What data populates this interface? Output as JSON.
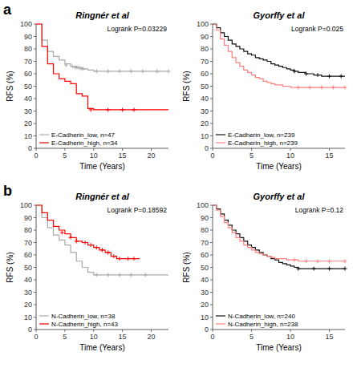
{
  "chart_data": [
    {
      "type": "step",
      "title": "Ringnér et al",
      "panel_label": "a",
      "annotations": [
        "Logrank P=0.03229"
      ],
      "xlabel": "Time (Years)",
      "ylabel": "RFS (%)",
      "xlim": [
        0,
        23
      ],
      "ylim": [
        0,
        100
      ],
      "xticks": [
        0,
        5,
        10,
        15,
        20
      ],
      "yticks": [
        0,
        10,
        20,
        30,
        40,
        50,
        60,
        70,
        80,
        90,
        100
      ],
      "grid": false,
      "legend": "lower left",
      "series": [
        {
          "name": "E-Cadherin_low, n=47",
          "color": "#aaaaaa",
          "x": [
            0,
            1,
            2,
            3,
            4,
            5,
            6,
            7,
            8,
            9,
            10,
            11,
            12,
            13,
            14,
            15,
            16,
            17,
            18,
            19,
            20,
            21,
            22,
            23
          ],
          "values": [
            100,
            87,
            78,
            74,
            71,
            68,
            66,
            65,
            64,
            63,
            62,
            62,
            62,
            62,
            62,
            62,
            62,
            62,
            62,
            62,
            62,
            62,
            62,
            62
          ],
          "censor_x": [
            5.2,
            6.3,
            6.8,
            7.1,
            7.4,
            7.8,
            8.2,
            10.5,
            12.5,
            14.5,
            16.5,
            18.5,
            21.0,
            23.0
          ],
          "censor_values": [
            67,
            66,
            65,
            65,
            65,
            64,
            64,
            62,
            62,
            62,
            62,
            62,
            62,
            62
          ]
        },
        {
          "name": "E-Cadherin_high, n=34",
          "color": "#ff0000",
          "x": [
            0,
            1,
            2,
            3,
            4,
            5,
            6,
            7,
            8,
            9,
            10,
            11,
            12,
            13,
            14,
            15,
            16,
            17,
            18,
            19,
            20,
            21,
            22,
            23
          ],
          "values": [
            100,
            82,
            68,
            60,
            56,
            54,
            52,
            44,
            42,
            32,
            31,
            31,
            31,
            31,
            31,
            31,
            31,
            31,
            31,
            31,
            31,
            31,
            31,
            31
          ],
          "censor_x": [
            9.5,
            12.5,
            15.0,
            17.0
          ],
          "censor_values": [
            31,
            31,
            31,
            31
          ]
        }
      ]
    },
    {
      "type": "step",
      "title": "Gyorffy et al",
      "annotations": [
        "Logrank P=0.025"
      ],
      "xlabel": "Time (Years)",
      "ylabel": "RFS (%)",
      "xlim": [
        0,
        17
      ],
      "ylim": [
        0,
        100
      ],
      "xticks": [
        0,
        5,
        10,
        15
      ],
      "yticks": [
        0,
        10,
        20,
        30,
        40,
        50,
        60,
        70,
        80,
        90,
        100
      ],
      "grid": false,
      "legend": "lower left",
      "series": [
        {
          "name": "E-Cadherin_low, n=239",
          "color": "#111111",
          "x": [
            0,
            0.5,
            1.0,
            1.5,
            2.0,
            2.5,
            3.0,
            3.5,
            4.0,
            4.5,
            5.0,
            5.5,
            6.0,
            6.5,
            7.0,
            7.5,
            8.0,
            8.5,
            9.0,
            9.5,
            10.0,
            10.5,
            11.0,
            12.0,
            13.0,
            14.0,
            15.0,
            16.0,
            17.0
          ],
          "values": [
            100,
            97,
            93,
            90,
            87,
            84,
            82,
            80,
            78,
            76,
            75,
            73,
            72,
            71,
            70,
            68,
            67,
            66,
            65,
            64,
            63,
            62,
            61,
            60,
            59,
            58,
            58,
            58,
            58
          ],
          "censor_x": [
            10.5,
            12.0,
            13.5,
            15.0,
            16.5
          ],
          "censor_values": [
            62,
            60,
            59,
            58,
            58
          ]
        },
        {
          "name": "E-Cadherin_high, n=239",
          "color": "#ff8080",
          "x": [
            0,
            0.5,
            1.0,
            1.5,
            2.0,
            2.5,
            3.0,
            3.5,
            4.0,
            4.5,
            5.0,
            5.5,
            6.0,
            6.5,
            7.0,
            7.5,
            8.0,
            8.5,
            9.0,
            9.5,
            10.0,
            10.5,
            11.0,
            12.0,
            13.0,
            14.0,
            15.0,
            16.0,
            17.0
          ],
          "values": [
            100,
            95,
            88,
            83,
            78,
            73,
            69,
            66,
            63,
            61,
            59,
            57,
            56,
            54,
            53,
            52,
            51,
            51,
            50,
            50,
            49,
            49,
            49,
            49,
            49,
            49,
            49,
            49,
            49
          ],
          "censor_x": [
            11.0,
            12.5,
            14.0,
            15.5,
            17.0
          ],
          "censor_values": [
            49,
            49,
            49,
            49,
            49
          ]
        }
      ]
    },
    {
      "type": "step",
      "title": "Ringnér et al",
      "panel_label": "b",
      "annotations": [
        "Logrank P=0.18592"
      ],
      "xlabel": "Time (Years)",
      "ylabel": "RFS (%)",
      "xlim": [
        0,
        23
      ],
      "ylim": [
        0,
        100
      ],
      "xticks": [
        0,
        5,
        10,
        15,
        20
      ],
      "yticks": [
        0,
        10,
        20,
        30,
        40,
        50,
        60,
        70,
        80,
        90,
        100
      ],
      "grid": false,
      "legend": "lower left",
      "series": [
        {
          "name": "N-Cadherin_low, n=38",
          "color": "#aaaaaa",
          "x": [
            0,
            1,
            2,
            3,
            4,
            5,
            6,
            7,
            8,
            9,
            10,
            11,
            12,
            13,
            14,
            15,
            16,
            17,
            18,
            19,
            20,
            21,
            22,
            23
          ],
          "values": [
            100,
            90,
            82,
            76,
            72,
            68,
            62,
            55,
            50,
            46,
            44,
            44,
            44,
            44,
            44,
            44,
            44,
            44,
            44,
            44,
            44,
            44,
            44,
            44
          ],
          "censor_x": [
            10.5,
            12.5,
            14.5,
            16.5,
            19.0
          ],
          "censor_values": [
            44,
            44,
            44,
            44,
            44
          ]
        },
        {
          "name": "N-Cadherin_high, n=43",
          "color": "#ff0000",
          "x": [
            0,
            1,
            2,
            3,
            4,
            5,
            6,
            7,
            8,
            9,
            10,
            11,
            12,
            13,
            14,
            15,
            16,
            17,
            18
          ],
          "values": [
            100,
            94,
            88,
            83,
            80,
            77,
            74,
            71,
            70,
            68,
            66,
            64,
            62,
            59,
            57,
            57,
            57,
            57,
            57
          ],
          "censor_x": [
            4.5,
            6.0,
            7.0,
            8.5,
            9.5,
            10.5,
            11.5,
            12.5,
            13.5,
            14.5,
            16.0,
            17.0
          ],
          "censor_values": [
            78,
            74,
            71,
            70,
            68,
            66,
            64,
            62,
            59,
            57,
            57,
            57
          ]
        }
      ]
    },
    {
      "type": "step",
      "title": "Gyorffy et al",
      "annotations": [
        "Logrank P=0.12"
      ],
      "xlabel": "Time (Years)",
      "ylabel": "RFS (%)",
      "xlim": [
        0,
        17
      ],
      "ylim": [
        0,
        100
      ],
      "xticks": [
        0,
        5,
        10,
        15
      ],
      "yticks": [
        0,
        10,
        20,
        30,
        40,
        50,
        60,
        70,
        80,
        90,
        100
      ],
      "grid": false,
      "legend": "lower left",
      "series": [
        {
          "name": "N-Cadherin_low, n=240",
          "color": "#111111",
          "x": [
            0,
            0.5,
            1.0,
            1.5,
            2.0,
            2.5,
            3.0,
            3.5,
            4.0,
            4.5,
            5.0,
            5.5,
            6.0,
            6.5,
            7.0,
            7.5,
            8.0,
            8.5,
            9.0,
            9.5,
            10.0,
            10.5,
            11.0,
            12.0,
            13.0,
            14.0,
            15.0,
            16.0,
            17.0
          ],
          "values": [
            100,
            97,
            93,
            88,
            84,
            80,
            77,
            74,
            71,
            68,
            66,
            64,
            62,
            60,
            59,
            57,
            56,
            54,
            53,
            52,
            51,
            50,
            49,
            49,
            49,
            49,
            49,
            49,
            49
          ],
          "censor_x": [
            11.0,
            13.0,
            15.0,
            17.0
          ],
          "censor_values": [
            49,
            49,
            49,
            49
          ]
        },
        {
          "name": "N-Cadherin_high, n=238",
          "color": "#ff8080",
          "x": [
            0,
            0.5,
            1.0,
            1.5,
            2.0,
            2.5,
            3.0,
            3.5,
            4.0,
            4.5,
            5.0,
            5.5,
            6.0,
            6.5,
            7.0,
            7.5,
            8.0,
            8.5,
            9.0,
            9.5,
            10.0,
            10.5,
            11.0,
            12.0,
            13.0,
            14.0,
            15.0,
            16.0,
            17.0
          ],
          "values": [
            100,
            96,
            91,
            86,
            82,
            78,
            74,
            71,
            68,
            66,
            64,
            62,
            61,
            60,
            59,
            58,
            57,
            57,
            57,
            56,
            56,
            56,
            55,
            55,
            55,
            55,
            55,
            55,
            55
          ],
          "censor_x": [
            10.5,
            12.0,
            13.5,
            15.0,
            17.0
          ],
          "censor_values": [
            56,
            55,
            55,
            55,
            55
          ]
        }
      ]
    }
  ]
}
